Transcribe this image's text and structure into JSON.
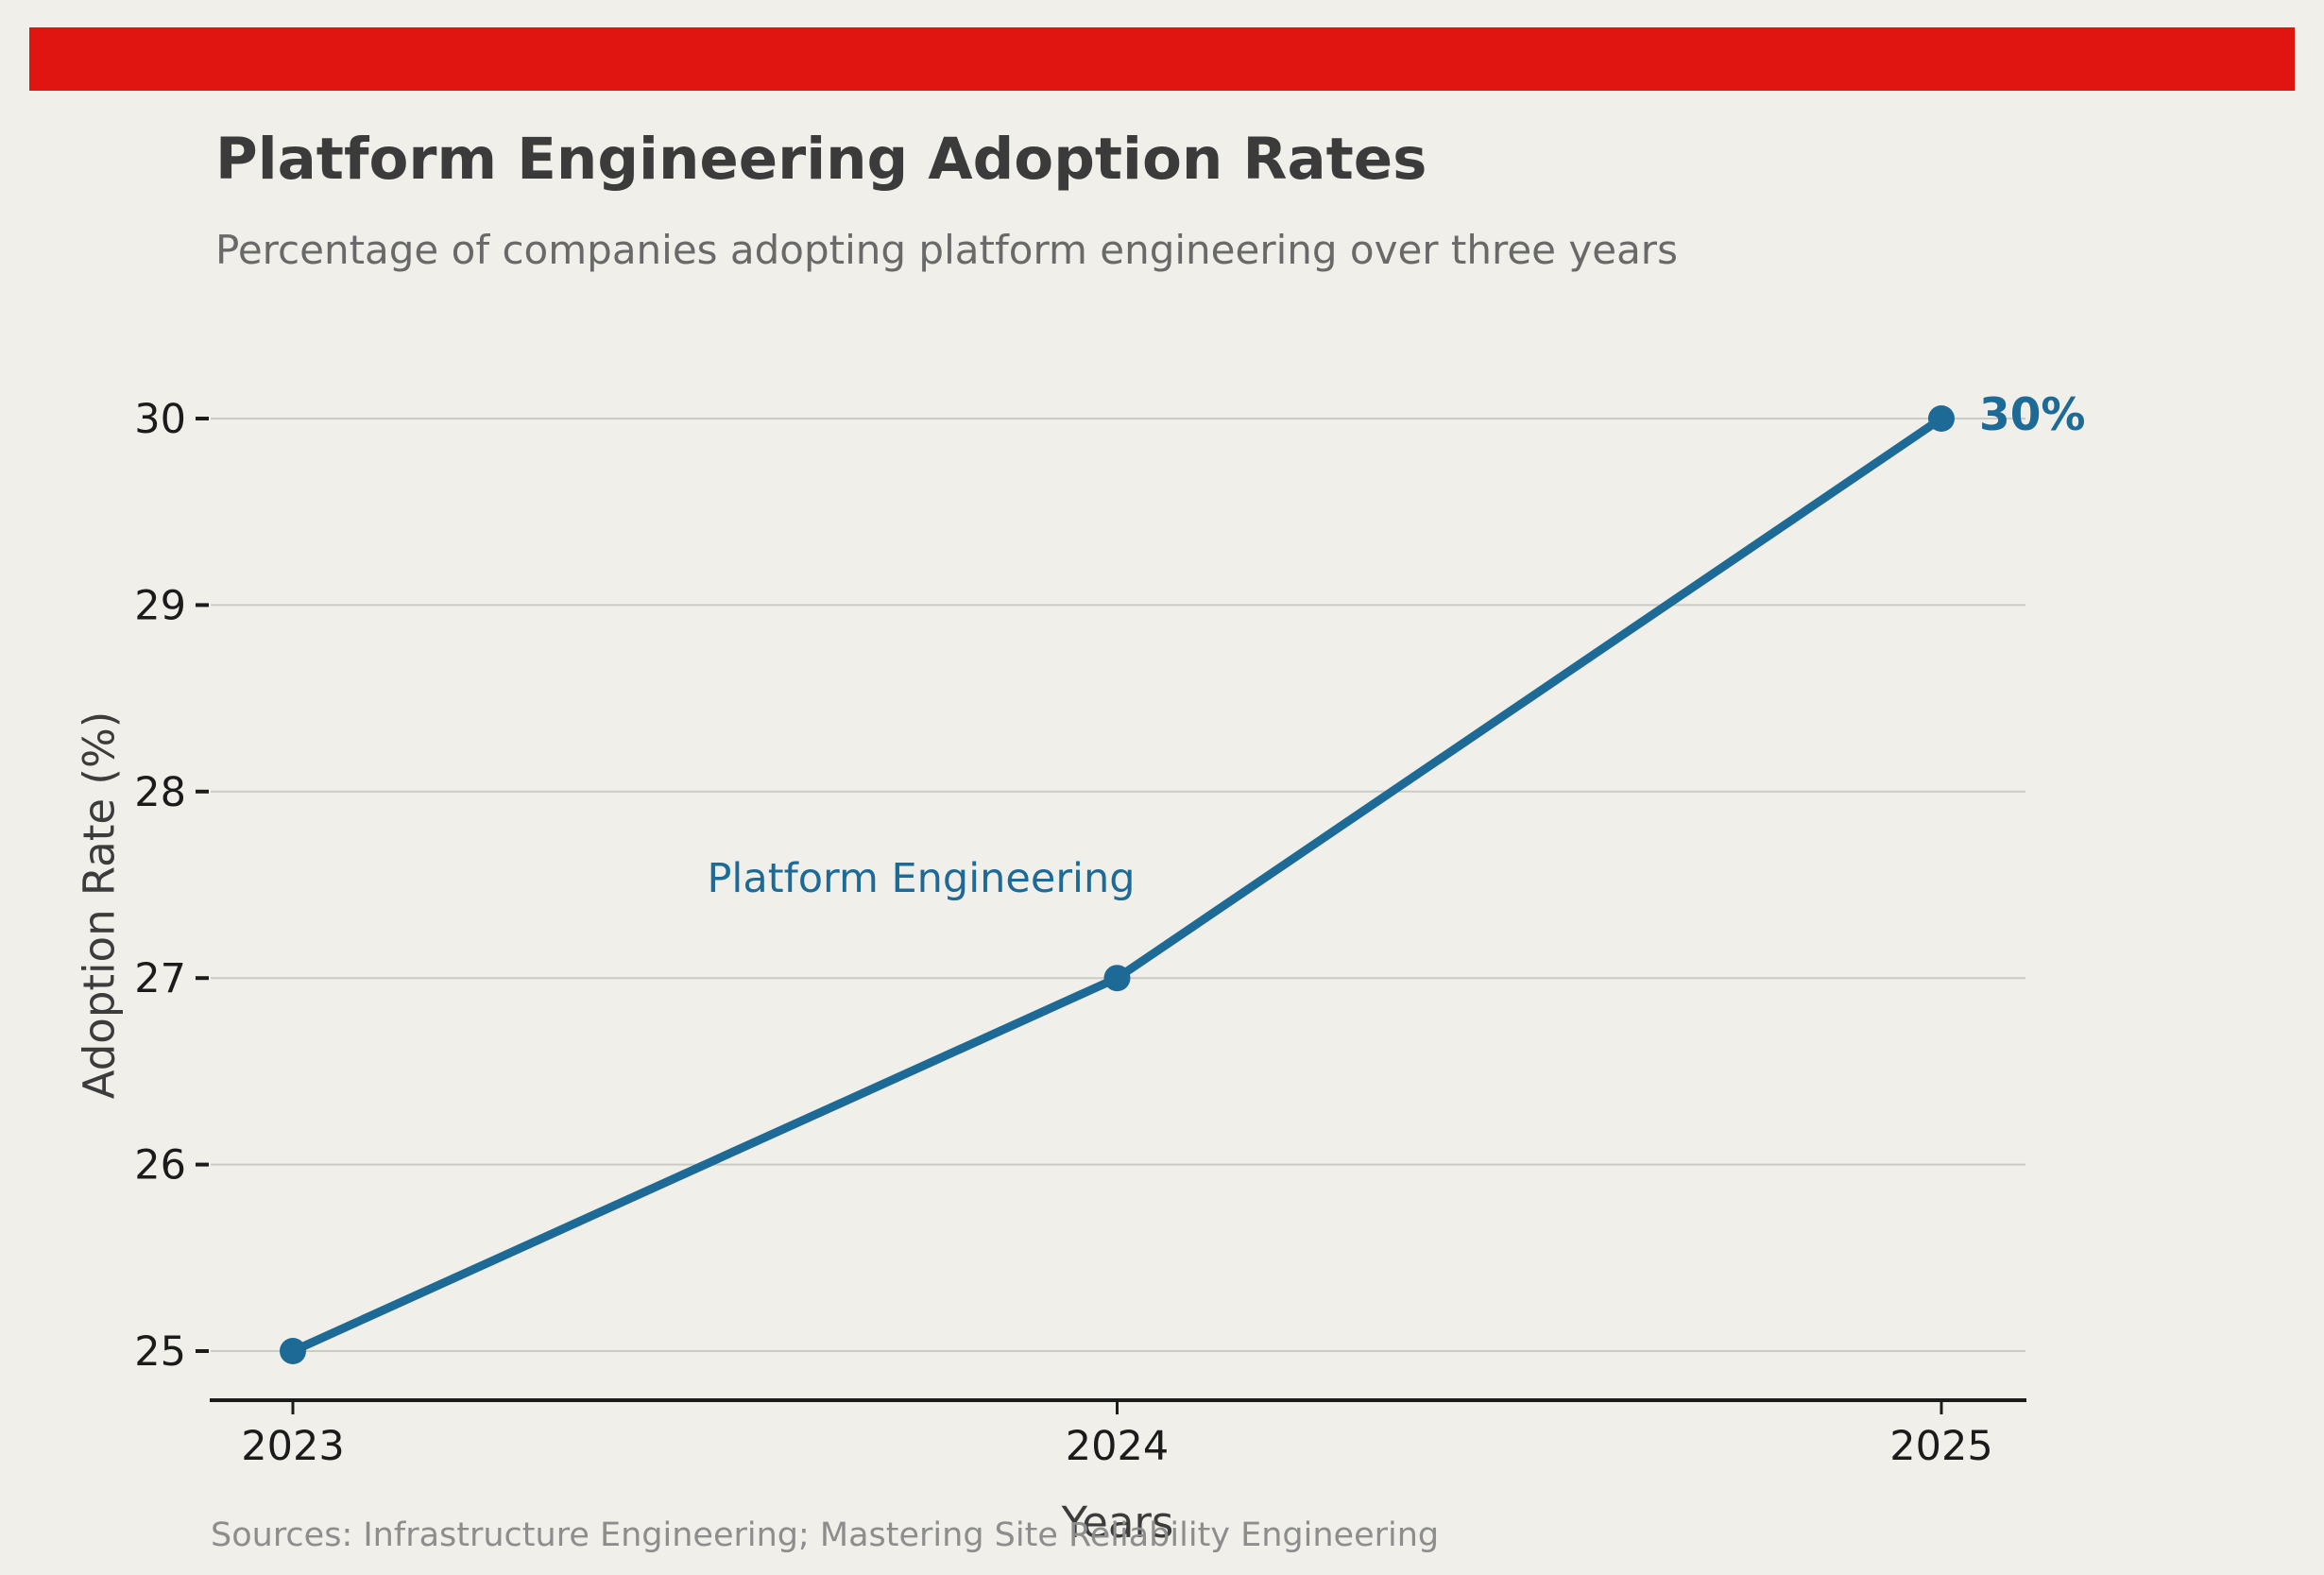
{
  "banner": {
    "color": "#e01410"
  },
  "header": {
    "title": "Platform Engineering Adoption Rates",
    "subtitle": "Percentage of companies adopting platform engineering over three years"
  },
  "chart_data": {
    "type": "line",
    "x": [
      2023,
      2024,
      2025
    ],
    "categories": [
      "2023",
      "2024",
      "2025"
    ],
    "series": [
      {
        "name": "Platform Engineering",
        "values": [
          25,
          27,
          30
        ],
        "color": "#1d6a96"
      }
    ],
    "title": "Platform Engineering Adoption Rates",
    "subtitle": "Percentage of companies adopting platform engineering over three years",
    "xlabel": "Years",
    "ylabel": "Adoption Rate (%)",
    "ylim": [
      25,
      30
    ],
    "yticks": [
      25,
      26,
      27,
      28,
      29,
      30
    ],
    "grid": true,
    "legend_position": "inline-annotation",
    "annotations": [
      {
        "text": "Platform Engineering",
        "color": "#1d6a96"
      },
      {
        "text": "30%",
        "point_x": 2025,
        "point_y": 30,
        "color": "#1d6a96",
        "bold": true
      }
    ]
  },
  "footer": {
    "sources": "Sources: Infrastructure Engineering; Mastering Site Reliability Engineering"
  },
  "labels": {
    "series_label": "Platform Engineering",
    "end_value": "30%"
  },
  "colors": {
    "background": "#f0efe9",
    "banner_red": "#e01410",
    "line_blue": "#1d6a96",
    "gridline": "#cbcbc6",
    "axis": "#1c1c1c",
    "tick_label": "#1b1b1b",
    "title_text": "#3b3b3b",
    "subtitle_text": "#696969",
    "axis_title_text": "#3c3c3c",
    "sources_text": "#8d8d8d"
  }
}
